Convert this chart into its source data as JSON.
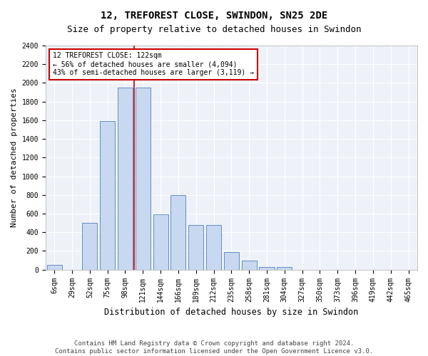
{
  "title": "12, TREFOREST CLOSE, SWINDON, SN25 2DE",
  "subtitle": "Size of property relative to detached houses in Swindon",
  "xlabel": "Distribution of detached houses by size in Swindon",
  "ylabel": "Number of detached properties",
  "categories": [
    "6sqm",
    "29sqm",
    "52sqm",
    "75sqm",
    "98sqm",
    "121sqm",
    "144sqm",
    "166sqm",
    "189sqm",
    "212sqm",
    "235sqm",
    "258sqm",
    "281sqm",
    "304sqm",
    "327sqm",
    "350sqm",
    "373sqm",
    "396sqm",
    "419sqm",
    "442sqm",
    "465sqm"
  ],
  "values": [
    50,
    0,
    500,
    1590,
    1950,
    1950,
    590,
    800,
    480,
    480,
    190,
    100,
    25,
    25,
    0,
    0,
    0,
    0,
    0,
    0,
    0
  ],
  "bar_color": "#c8d8f0",
  "bar_edge_color": "#5080c0",
  "vline_x": 4.5,
  "vline_color": "#cc0000",
  "annotation_text": "12 TREFOREST CLOSE: 122sqm\n← 56% of detached houses are smaller (4,094)\n43% of semi-detached houses are larger (3,119) →",
  "annotation_box_color": "#ffffff",
  "annotation_box_edge": "#cc0000",
  "ylim": [
    0,
    2400
  ],
  "yticks": [
    0,
    200,
    400,
    600,
    800,
    1000,
    1200,
    1400,
    1600,
    1800,
    2000,
    2200,
    2400
  ],
  "footer1": "Contains HM Land Registry data © Crown copyright and database right 2024.",
  "footer2": "Contains public sector information licensed under the Open Government Licence v3.0.",
  "title_fontsize": 10,
  "subtitle_fontsize": 9,
  "xlabel_fontsize": 8.5,
  "ylabel_fontsize": 8,
  "tick_fontsize": 7,
  "footer_fontsize": 6.5,
  "annot_fontsize": 7,
  "bg_color": "#eef2f8"
}
